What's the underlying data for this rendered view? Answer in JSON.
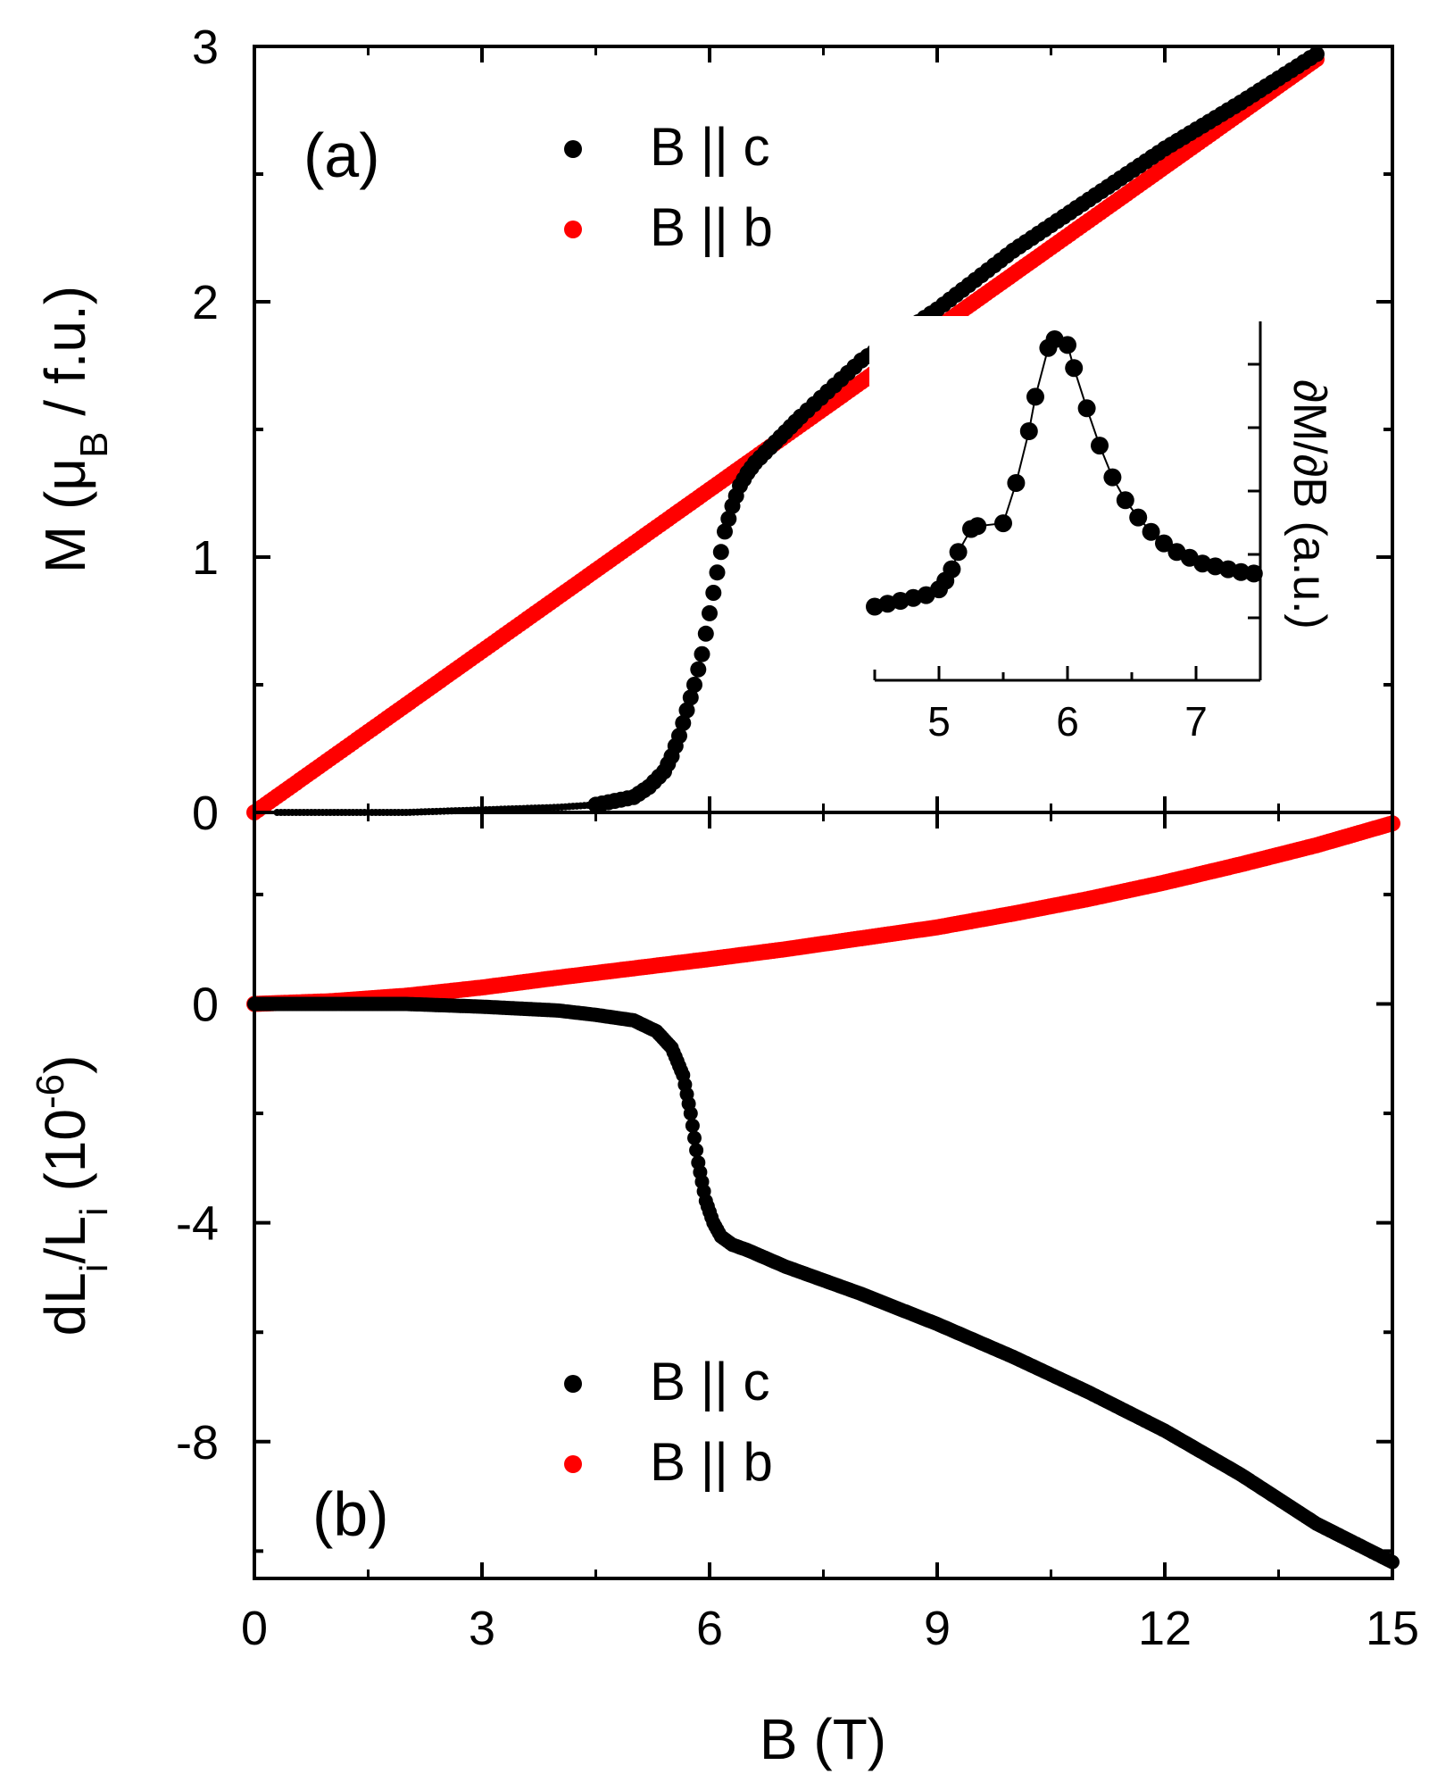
{
  "chart_data": [
    {
      "panel": "(a)",
      "type": "scatter",
      "xlabel": "B (T)",
      "ylabel": "M (μB / f.u.)",
      "ylabel_parts": {
        "main": "M (μ",
        "sub": "B",
        "tail": " / f.u.)"
      },
      "xlim": [
        0,
        15
      ],
      "ylim": [
        0,
        3
      ],
      "yticks": [
        0,
        1,
        2,
        3
      ],
      "xticks": [
        0,
        3,
        6,
        9,
        12,
        15
      ],
      "legend": [
        {
          "label": "B || c",
          "color": "#000000"
        },
        {
          "label": "B || b",
          "color": "#ff0000"
        }
      ],
      "series": [
        {
          "name": "B || c",
          "color": "#000000",
          "x": [
            0.3,
            1,
            2,
            3,
            4,
            4.5,
            5,
            5.2,
            5.4,
            5.5,
            5.6,
            5.7,
            5.8,
            5.85,
            5.9,
            5.95,
            6.0,
            6.05,
            6.1,
            6.15,
            6.2,
            6.3,
            6.4,
            6.5,
            6.6,
            6.8,
            7.0,
            7.2,
            8,
            9,
            10,
            11,
            12,
            13,
            14
          ],
          "y": [
            0.0,
            0.0,
            0.0,
            0.01,
            0.02,
            0.03,
            0.06,
            0.1,
            0.16,
            0.22,
            0.3,
            0.4,
            0.5,
            0.56,
            0.62,
            0.7,
            0.78,
            0.86,
            0.94,
            1.02,
            1.1,
            1.2,
            1.28,
            1.33,
            1.37,
            1.43,
            1.49,
            1.55,
            1.77,
            1.97,
            2.2,
            2.4,
            2.6,
            2.78,
            2.97
          ]
        },
        {
          "name": "B || b",
          "color": "#ff0000",
          "x": [
            0,
            14
          ],
          "y": [
            0,
            2.95
          ]
        }
      ],
      "inset": {
        "type": "line",
        "xlabel": "",
        "ylabel": "∂M/∂B (a.u.)",
        "xlim": [
          4.5,
          7.5
        ],
        "xticks": [
          5,
          6,
          7
        ],
        "x": [
          4.5,
          4.6,
          4.7,
          4.8,
          4.9,
          5.0,
          5.05,
          5.1,
          5.15,
          5.25,
          5.3,
          5.5,
          5.6,
          5.7,
          5.75,
          5.85,
          5.9,
          6.0,
          6.05,
          6.15,
          6.25,
          6.35,
          6.45,
          6.55,
          6.65,
          6.75,
          6.85,
          6.95,
          7.05,
          7.15,
          7.25,
          7.35,
          7.45
        ],
        "y": [
          0.07,
          0.08,
          0.09,
          0.1,
          0.11,
          0.13,
          0.16,
          0.2,
          0.26,
          0.34,
          0.35,
          0.36,
          0.5,
          0.68,
          0.8,
          0.97,
          1.0,
          0.98,
          0.9,
          0.76,
          0.63,
          0.52,
          0.44,
          0.38,
          0.33,
          0.29,
          0.26,
          0.24,
          0.22,
          0.21,
          0.2,
          0.19,
          0.185
        ]
      }
    },
    {
      "panel": "(b)",
      "type": "scatter",
      "xlabel": "B (T)",
      "ylabel": "dLi/Li (10-6)",
      "ylabel_parts": {
        "a": "dL",
        "b": "i",
        "c": "/L",
        "d": "i",
        "e": " (10",
        "f": "-6",
        "g": ")"
      },
      "xlim": [
        0,
        15
      ],
      "ylim": [
        -10.5,
        3.5
      ],
      "yticks": [
        0,
        -4,
        -8
      ],
      "ytick_labels": [
        "0",
        "-4",
        "-8"
      ],
      "xticks": [
        0,
        3,
        6,
        9,
        12,
        15
      ],
      "xtick_labels": [
        "0",
        "3",
        "6",
        "9",
        "12",
        "15"
      ],
      "legend": [
        {
          "label": "B || c",
          "color": "#000000"
        },
        {
          "label": "B || b",
          "color": "#ff0000"
        }
      ],
      "series": [
        {
          "name": "B || c",
          "color": "#000000",
          "x": [
            0,
            1,
            2,
            3,
            4,
            4.5,
            5,
            5.3,
            5.5,
            5.65,
            5.75,
            5.85,
            5.95,
            6.05,
            6.15,
            6.3,
            6.5,
            7,
            8,
            9,
            10,
            11,
            12,
            13,
            14,
            15
          ],
          "y": [
            0,
            0,
            0,
            -0.05,
            -0.12,
            -0.2,
            -0.3,
            -0.5,
            -0.8,
            -1.3,
            -2.0,
            -2.9,
            -3.6,
            -4.0,
            -4.25,
            -4.4,
            -4.5,
            -4.8,
            -5.3,
            -5.85,
            -6.45,
            -7.1,
            -7.8,
            -8.6,
            -9.5,
            -10.2
          ]
        },
        {
          "name": "B || b",
          "color": "#ff0000",
          "x": [
            0,
            1,
            2,
            3,
            4,
            5,
            6,
            7,
            8,
            9,
            10,
            11,
            12,
            13,
            14,
            15
          ],
          "y": [
            0,
            0.05,
            0.15,
            0.3,
            0.48,
            0.65,
            0.82,
            1.0,
            1.2,
            1.4,
            1.65,
            1.92,
            2.22,
            2.55,
            2.9,
            3.3
          ]
        }
      ]
    }
  ],
  "panel_a_label": "(a)",
  "panel_b_label": "(b)",
  "shared_xlabel": "B (T)"
}
